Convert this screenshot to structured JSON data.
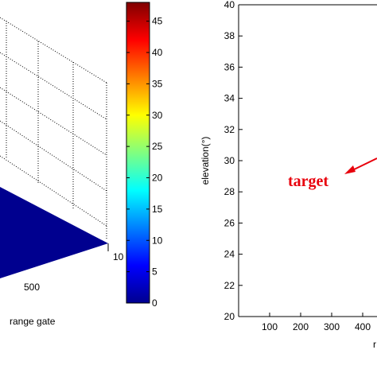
{
  "chart_data": [
    {
      "type": "surface",
      "xlabel": "range gate",
      "x_tick_labels": [
        "500",
        "10"
      ],
      "grid": true,
      "surface_color": "#00008f"
    },
    {
      "type": "colorbar",
      "colormap": "jet",
      "range": [
        0,
        48
      ],
      "ticks": [
        0,
        5,
        10,
        15,
        20,
        25,
        30,
        35,
        40,
        45
      ],
      "tick_labels": [
        "0",
        "5",
        "10",
        "15",
        "20",
        "25",
        "30",
        "35",
        "40",
        "45"
      ]
    },
    {
      "type": "scatter",
      "ylabel": "elevation(°)",
      "xlabel": "r",
      "ylim": [
        20,
        40
      ],
      "y_ticks": [
        20,
        22,
        24,
        26,
        28,
        30,
        32,
        34,
        36,
        38,
        40
      ],
      "y_tick_labels": [
        "20",
        "22",
        "24",
        "26",
        "28",
        "30",
        "32",
        "34",
        "36",
        "38",
        "40"
      ],
      "x_ticks": [
        100,
        200,
        300,
        400
      ],
      "x_tick_labels": [
        "100",
        "200",
        "300",
        "400"
      ],
      "annotation": {
        "text": "target",
        "color": "#e8000c"
      }
    }
  ]
}
